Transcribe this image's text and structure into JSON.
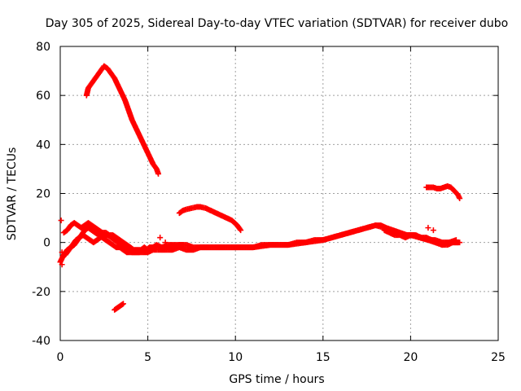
{
  "chart_data": {
    "type": "scatter",
    "title": "Day 305 of 2025, Sidereal Day-to-day VTEC variation (SDTVAR) for receiver dubo",
    "xlabel": "GPS time / hours",
    "ylabel": "SDTVAR / TECUs",
    "xlim": [
      0,
      25
    ],
    "ylim": [
      -40,
      80
    ],
    "xticks": [
      0,
      5,
      10,
      15,
      20,
      25
    ],
    "yticks": [
      -40,
      -20,
      0,
      20,
      40,
      60,
      80
    ],
    "grid": true,
    "marker": "+",
    "color": "#ff0000",
    "series": [
      {
        "name": "arc-high",
        "x": [
          1.5,
          1.6,
          1.8,
          2.0,
          2.2,
          2.4,
          2.5,
          2.7,
          2.9,
          3.1,
          3.3,
          3.5,
          3.7,
          3.9,
          4.1,
          4.3,
          4.5,
          4.7,
          4.9,
          5.1,
          5.3,
          5.5,
          5.6
        ],
        "y": [
          60,
          63,
          65,
          67,
          69,
          71,
          72,
          71,
          69,
          67,
          64,
          61,
          58,
          54,
          50,
          47,
          44,
          41,
          38,
          35,
          32,
          30,
          28
        ]
      },
      {
        "name": "arc-mid",
        "x": [
          6.8,
          7.0,
          7.2,
          7.5,
          7.8,
          8.0,
          8.3,
          8.6,
          8.9,
          9.2,
          9.5,
          9.8,
          10.1,
          10.3
        ],
        "y": [
          12,
          13,
          13.5,
          14,
          14.5,
          14.5,
          14,
          13,
          12,
          11,
          10,
          9,
          7,
          5
        ]
      },
      {
        "name": "arc-low",
        "x": [
          3.1,
          3.2,
          3.3,
          3.4,
          3.5,
          3.6
        ],
        "y": [
          -27.5,
          -27,
          -26.5,
          -26,
          -25.5,
          -25
        ]
      },
      {
        "name": "arc-right",
        "x": [
          20.9,
          21.1,
          21.3,
          21.5,
          21.7,
          21.9,
          22.1,
          22.3,
          22.5,
          22.7,
          22.8
        ],
        "y": [
          22.5,
          22.5,
          22.5,
          22,
          22,
          22.5,
          23,
          22.5,
          21,
          19.5,
          18
        ]
      },
      {
        "name": "baseline-a",
        "x": [
          0.0,
          0.2,
          0.4,
          0.6,
          0.8,
          1.0,
          1.2,
          1.4,
          1.6,
          1.8,
          2.0,
          2.2,
          2.4,
          2.6,
          2.8,
          3.0,
          3.2,
          3.4,
          3.6,
          3.8,
          4.0,
          4.2,
          4.4,
          4.6,
          4.8,
          5.0,
          5.3,
          5.6,
          6.0,
          6.4,
          6.8,
          7.2,
          7.6,
          8.0,
          8.5,
          9.0,
          9.5,
          10.0,
          10.5,
          11.0,
          11.5,
          12.0,
          12.5,
          13.0,
          13.5,
          14.0,
          14.5,
          15.0,
          15.5,
          16.0,
          16.5,
          17.0,
          17.5,
          18.0,
          18.3,
          18.6,
          19.0,
          19.4,
          19.8,
          20.2,
          20.6,
          21.0,
          21.4,
          21.8,
          22.2,
          22.6,
          22.8
        ],
        "y": [
          -8,
          -5,
          -3,
          -2,
          -1,
          1,
          3,
          5,
          6,
          5,
          4,
          3,
          2,
          1,
          0,
          -1,
          -2,
          -2,
          -3,
          -4,
          -4,
          -4,
          -4,
          -4,
          -4,
          -4,
          -3,
          -3,
          -3,
          -3,
          -2,
          -3,
          -3,
          -2,
          -2,
          -2,
          -2,
          -2,
          -2,
          -2,
          -1,
          -1,
          -1,
          -1,
          0,
          0,
          1,
          1,
          2,
          3,
          4,
          5,
          6,
          7,
          7,
          6,
          5,
          4,
          3,
          3,
          2,
          1,
          1,
          0,
          0,
          0,
          0
        ]
      },
      {
        "name": "baseline-b",
        "x": [
          0.2,
          0.4,
          0.6,
          0.8,
          1.0,
          1.2,
          1.4,
          1.6,
          1.8,
          2.0,
          2.2,
          2.4,
          2.6,
          2.8,
          3.0,
          3.2,
          3.4,
          3.6,
          3.8,
          4.0,
          4.2,
          4.4,
          4.6,
          4.8,
          5.0,
          5.3,
          5.6,
          6.0,
          6.4,
          6.8,
          7.2,
          7.6,
          8.0,
          9.0,
          10.0,
          11.0,
          12.0,
          13.0,
          14.0,
          15.0,
          16.0,
          17.0,
          17.5,
          18.0,
          18.5,
          19.0,
          19.5,
          20.0,
          20.5,
          21.0,
          21.4,
          21.8,
          22.2,
          22.6
        ],
        "y": [
          4,
          5,
          7,
          8,
          7,
          6,
          7,
          8,
          7,
          6,
          5,
          4,
          4,
          3,
          3,
          2,
          1,
          0,
          -1,
          -2,
          -3,
          -3,
          -3,
          -2,
          -3,
          -2,
          -2,
          -2,
          -2,
          -1,
          -1,
          -2,
          -2,
          -2,
          -2,
          -2,
          -1,
          -1,
          0,
          1,
          3,
          5,
          6,
          7,
          6,
          4,
          3,
          3,
          2,
          1,
          0,
          -1,
          0,
          1
        ]
      },
      {
        "name": "baseline-c",
        "x": [
          0.3,
          0.5,
          0.7,
          0.9,
          1.1,
          1.3,
          1.5,
          1.7,
          1.9,
          2.1,
          2.3,
          2.5,
          2.7,
          2.9,
          3.1,
          3.3,
          3.5,
          3.7,
          3.9,
          4.1,
          4.3,
          4.5,
          4.7,
          4.9,
          5.1,
          5.3,
          5.5,
          5.8,
          6.2,
          6.6,
          7.0
        ],
        "y": [
          -5,
          -3,
          -1,
          1,
          2,
          3,
          2,
          1,
          0,
          1,
          2,
          3,
          3,
          2,
          1,
          0,
          -1,
          -2,
          -3,
          -4,
          -4,
          -4,
          -3,
          -3,
          -2,
          -2,
          -1,
          -2,
          -1,
          -1,
          -1
        ]
      },
      {
        "name": "baseline-d",
        "x": [
          18.5,
          18.8,
          19.1,
          19.4,
          19.7,
          20.0,
          20.3,
          20.6,
          20.9,
          21.2,
          21.5,
          21.8,
          22.1,
          22.4,
          22.7
        ],
        "y": [
          5,
          4,
          3,
          3,
          2,
          3,
          3,
          2,
          2,
          1,
          0,
          -1,
          -1,
          0,
          0
        ]
      },
      {
        "name": "isolated",
        "x": [
          0.05,
          0.1,
          0.1,
          5.7,
          6.0,
          21.0,
          21.3
        ],
        "y": [
          9,
          -9,
          -4,
          2,
          0,
          6,
          5
        ]
      }
    ]
  }
}
